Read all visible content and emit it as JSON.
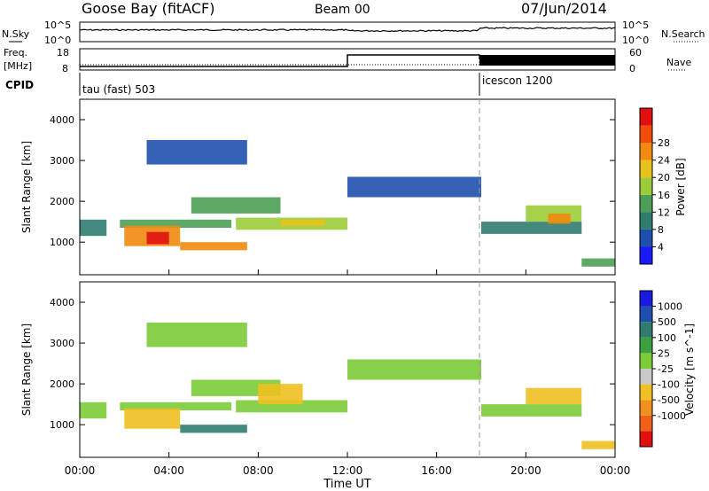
{
  "header": {
    "station": "Goose Bay (fitACF)",
    "beam": "Beam 00",
    "date": "07/Jun/2014"
  },
  "top_panels": {
    "nsky_label": "N.Sky",
    "nsky_ticks": [
      "10^5",
      "10^0"
    ],
    "nsearch_label": "N.Search",
    "nsearch_ticks": [
      "10^5",
      "10^0"
    ],
    "freq_label_1": "Freq.",
    "freq_label_2": "[MHz]",
    "freq_ticks": [
      "18",
      "8"
    ],
    "nave_label": "Nave",
    "nave_ticks": [
      "60",
      "0"
    ],
    "cpid_label": "CPID",
    "cpid_segments": [
      "tau (fast) 503",
      "icescon 1200"
    ]
  },
  "colors": {
    "power": [
      "#1a1aff",
      "#1e4fae",
      "#2f7c6e",
      "#4c9e58",
      "#9ccc3a",
      "#e8c21a",
      "#f08a10",
      "#f24b0c",
      "#e01010"
    ],
    "velocity": [
      "#1a1ae0",
      "#1e4fae",
      "#2f7c6e",
      "#3aa040",
      "#7ccc3a",
      "#c8c8c8",
      "#f0c020",
      "#f09020",
      "#f06018",
      "#e01010"
    ]
  },
  "chart_data": [
    {
      "type": "heatmap",
      "title": "",
      "xlabel": "Time UT",
      "ylabel": "Slant Range [km]",
      "x_ticks": [
        "00:00",
        "04:00",
        "08:00",
        "12:00",
        "16:00",
        "20:00",
        "00:00"
      ],
      "xlim": [
        0,
        24
      ],
      "ylim": [
        200,
        4500
      ],
      "y_ticks": [
        1000,
        2000,
        3000,
        4000
      ],
      "colorbar_label": "Power [dB]",
      "colorbar_ticks": [
        "4",
        "8",
        "12",
        "16",
        "20",
        "24",
        "28"
      ],
      "colorbar_range": [
        0,
        30
      ],
      "blobs": [
        {
          "t0": 0.0,
          "t1": 1.2,
          "r0": 1150,
          "r1": 1550,
          "v": 8
        },
        {
          "t0": 1.8,
          "t1": 6.8,
          "r0": 1350,
          "r1": 1550,
          "v": 10
        },
        {
          "t0": 2.0,
          "t1": 4.5,
          "r0": 900,
          "r1": 1400,
          "v": 22
        },
        {
          "t0": 3.0,
          "t1": 4.0,
          "r0": 950,
          "r1": 1250,
          "v": 28
        },
        {
          "t0": 4.5,
          "t1": 7.5,
          "r0": 800,
          "r1": 1000,
          "v": 20
        },
        {
          "t0": 5.0,
          "t1": 9.0,
          "r0": 1700,
          "r1": 2100,
          "v": 12
        },
        {
          "t0": 7.0,
          "t1": 12.0,
          "r0": 1300,
          "r1": 1600,
          "v": 15
        },
        {
          "t0": 9.0,
          "t1": 11.0,
          "r0": 1400,
          "r1": 1550,
          "v": 18
        },
        {
          "t0": 3.0,
          "t1": 7.5,
          "r0": 2900,
          "r1": 3500,
          "v": 6
        },
        {
          "t0": 12.0,
          "t1": 18.0,
          "r0": 2100,
          "r1": 2600,
          "v": 5
        },
        {
          "t0": 18.0,
          "t1": 22.5,
          "r0": 1200,
          "r1": 1500,
          "v": 9
        },
        {
          "t0": 20.0,
          "t1": 22.5,
          "r0": 1500,
          "r1": 1900,
          "v": 14
        },
        {
          "t0": 21.0,
          "t1": 22.0,
          "r0": 1450,
          "r1": 1700,
          "v": 20
        },
        {
          "t0": 22.5,
          "t1": 24.0,
          "r0": 400,
          "r1": 600,
          "v": 10
        }
      ]
    },
    {
      "type": "heatmap",
      "title": "",
      "xlabel": "Time UT",
      "ylabel": "Slant Range [km]",
      "x_ticks": [
        "00:00",
        "04:00",
        "08:00",
        "12:00",
        "16:00",
        "20:00",
        "00:00"
      ],
      "xlim": [
        0,
        24
      ],
      "ylim": [
        200,
        4500
      ],
      "y_ticks": [
        1000,
        2000,
        3000,
        4000
      ],
      "colorbar_label": "Velocity [m s^-1]",
      "colorbar_ticks": [
        "1000",
        "500",
        "100",
        "25",
        "-25",
        "-100",
        "-500",
        "-1000"
      ],
      "colorbar_range": [
        -1000,
        1000
      ],
      "blobs": [
        {
          "t0": 0.0,
          "t1": 1.2,
          "r0": 1150,
          "r1": 1550,
          "v": 0
        },
        {
          "t0": 1.8,
          "t1": 6.8,
          "r0": 1350,
          "r1": 1550,
          "v": 0
        },
        {
          "t0": 2.0,
          "t1": 4.5,
          "r0": 900,
          "r1": 1400,
          "v": -150
        },
        {
          "t0": 4.5,
          "t1": 7.5,
          "r0": 800,
          "r1": 1000,
          "v": 150
        },
        {
          "t0": 5.0,
          "t1": 9.0,
          "r0": 1700,
          "r1": 2100,
          "v": 0
        },
        {
          "t0": 7.0,
          "t1": 12.0,
          "r0": 1300,
          "r1": 1600,
          "v": 0
        },
        {
          "t0": 8.0,
          "t1": 10.0,
          "r0": 1500,
          "r1": 2000,
          "v": -300
        },
        {
          "t0": 3.0,
          "t1": 7.5,
          "r0": 2900,
          "r1": 3500,
          "v": 0
        },
        {
          "t0": 12.0,
          "t1": 18.0,
          "r0": 2100,
          "r1": 2600,
          "v": 0
        },
        {
          "t0": 18.0,
          "t1": 22.5,
          "r0": 1200,
          "r1": 1500,
          "v": 0
        },
        {
          "t0": 20.0,
          "t1": 22.5,
          "r0": 1500,
          "r1": 1900,
          "v": -400
        },
        {
          "t0": 22.5,
          "t1": 24.0,
          "r0": 400,
          "r1": 600,
          "v": -150
        }
      ]
    }
  ]
}
